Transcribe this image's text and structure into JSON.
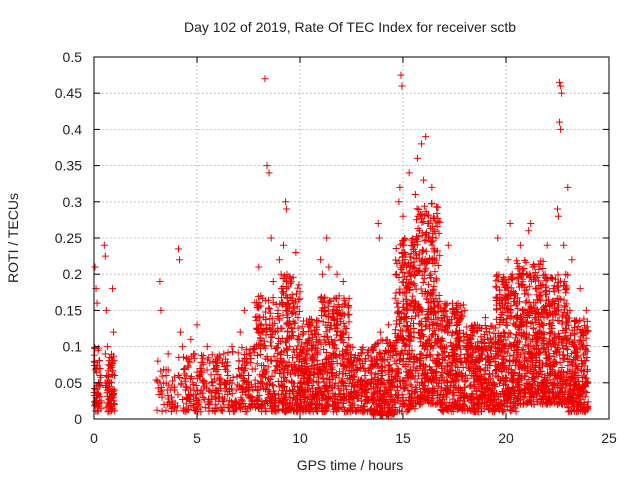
{
  "chart_data": {
    "type": "scatter",
    "title": "Day 102 of 2019, Rate Of TEC Index for receiver sctb",
    "xlabel": "GPS time / hours",
    "ylabel": "ROTI / TECUs",
    "xlim": [
      0,
      25
    ],
    "ylim": [
      0,
      0.5
    ],
    "x_ticks": [
      "0",
      "5",
      "10",
      "15",
      "20",
      "25"
    ],
    "y_ticks": [
      "0",
      "0.05",
      "0.1",
      "0.15",
      "0.2",
      "0.25",
      "0.3",
      "0.35",
      "0.4",
      "0.45",
      "0.5"
    ],
    "grid": true,
    "marker": "+",
    "color": "#ee0000",
    "series": [
      {
        "name": "ROTI",
        "points": [
          [
            0.05,
            0.21
          ],
          [
            0.1,
            0.18
          ],
          [
            0.15,
            0.16
          ],
          [
            0.2,
            0.095
          ],
          [
            0.25,
            0.07
          ],
          [
            0.3,
            0.05
          ],
          [
            0.35,
            0.025
          ],
          [
            0.1,
            0.02
          ],
          [
            0.2,
            0.035
          ],
          [
            0.3,
            0.06
          ],
          [
            0.5,
            0.24
          ],
          [
            0.55,
            0.225
          ],
          [
            0.6,
            0.15
          ],
          [
            0.55,
            0.09
          ],
          [
            0.6,
            0.06
          ],
          [
            0.7,
            0.04
          ],
          [
            0.8,
            0.03
          ],
          [
            0.9,
            0.18
          ],
          [
            0.95,
            0.12
          ],
          [
            0.9,
            0.08
          ],
          [
            0.85,
            0.05
          ],
          [
            0.75,
            0.02
          ],
          [
            1.0,
            0.06
          ],
          [
            1.0,
            0.02
          ],
          [
            0.65,
            0.1
          ],
          [
            0.7,
            0.075
          ],
          [
            3.2,
            0.19
          ],
          [
            3.25,
            0.15
          ],
          [
            3.1,
            0.08
          ],
          [
            3.2,
            0.05
          ],
          [
            3.3,
            0.03
          ],
          [
            3.4,
            0.02
          ],
          [
            3.5,
            0.06
          ],
          [
            3.6,
            0.09
          ],
          [
            3.7,
            0.04
          ],
          [
            3.8,
            0.02
          ],
          [
            4.1,
            0.235
          ],
          [
            4.15,
            0.22
          ],
          [
            4.2,
            0.12
          ],
          [
            4.3,
            0.1
          ],
          [
            4.1,
            0.06
          ],
          [
            4.4,
            0.07
          ],
          [
            4.5,
            0.03
          ],
          [
            4.6,
            0.08
          ],
          [
            4.7,
            0.11
          ],
          [
            4.8,
            0.05
          ],
          [
            4.9,
            0.09
          ],
          [
            5.0,
            0.13
          ],
          [
            5.1,
            0.06
          ],
          [
            5.2,
            0.04
          ],
          [
            5.3,
            0.075
          ],
          [
            5.5,
            0.1
          ],
          [
            5.7,
            0.05
          ],
          [
            5.9,
            0.08
          ],
          [
            6.1,
            0.03
          ],
          [
            6.3,
            0.09
          ],
          [
            6.5,
            0.06
          ],
          [
            6.7,
            0.1
          ],
          [
            6.9,
            0.04
          ],
          [
            7.1,
            0.12
          ],
          [
            7.2,
            0.08
          ],
          [
            7.3,
            0.15
          ],
          [
            7.4,
            0.05
          ],
          [
            7.5,
            0.06
          ],
          [
            7.6,
            0.03
          ],
          [
            7.8,
            0.1
          ],
          [
            8.0,
            0.21
          ],
          [
            8.1,
            0.17
          ],
          [
            8.2,
            0.12
          ],
          [
            8.3,
            0.47
          ],
          [
            8.4,
            0.35
          ],
          [
            8.5,
            0.34
          ],
          [
            8.6,
            0.25
          ],
          [
            8.7,
            0.19
          ],
          [
            8.8,
            0.12
          ],
          [
            8.9,
            0.08
          ],
          [
            9.0,
            0.22
          ],
          [
            9.1,
            0.18
          ],
          [
            9.2,
            0.24
          ],
          [
            9.3,
            0.3
          ],
          [
            9.35,
            0.29
          ],
          [
            9.4,
            0.16
          ],
          [
            9.5,
            0.1
          ],
          [
            9.6,
            0.05
          ],
          [
            9.7,
            0.03
          ],
          [
            9.8,
            0.23
          ],
          [
            9.9,
            0.14
          ],
          [
            10.0,
            0.07
          ],
          [
            10.1,
            0.04
          ],
          [
            10.2,
            0.1
          ],
          [
            10.3,
            0.09
          ],
          [
            10.4,
            0.05
          ],
          [
            10.5,
            0.13
          ],
          [
            10.6,
            0.08
          ],
          [
            10.7,
            0.03
          ],
          [
            10.8,
            0.11
          ],
          [
            11.0,
            0.22
          ],
          [
            11.1,
            0.2
          ],
          [
            11.2,
            0.15
          ],
          [
            11.3,
            0.25
          ],
          [
            11.4,
            0.21
          ],
          [
            11.5,
            0.14
          ],
          [
            11.6,
            0.09
          ],
          [
            11.7,
            0.06
          ],
          [
            11.8,
            0.2
          ],
          [
            11.9,
            0.17
          ],
          [
            12.0,
            0.12
          ],
          [
            12.1,
            0.19
          ],
          [
            12.2,
            0.16
          ],
          [
            12.3,
            0.1
          ],
          [
            12.4,
            0.06
          ],
          [
            12.5,
            0.03
          ],
          [
            12.6,
            0.08
          ],
          [
            12.8,
            0.05
          ],
          [
            13.0,
            0.09
          ],
          [
            13.2,
            0.04
          ],
          [
            13.4,
            0.07
          ],
          [
            13.6,
            0.03
          ],
          [
            13.7,
            0.02
          ],
          [
            13.8,
            0.27
          ],
          [
            13.85,
            0.25
          ],
          [
            13.9,
            0.12
          ],
          [
            14.0,
            0.06
          ],
          [
            14.1,
            0.09
          ],
          [
            14.2,
            0.04
          ],
          [
            14.3,
            0.13
          ],
          [
            14.4,
            0.1
          ],
          [
            14.5,
            0.05
          ],
          [
            14.6,
            0.08
          ],
          [
            14.7,
            0.16
          ],
          [
            14.8,
            0.3
          ],
          [
            14.85,
            0.32
          ],
          [
            14.9,
            0.475
          ],
          [
            14.95,
            0.46
          ],
          [
            15.0,
            0.28
          ],
          [
            15.1,
            0.22
          ],
          [
            15.2,
            0.18
          ],
          [
            15.3,
            0.34
          ],
          [
            15.4,
            0.24
          ],
          [
            15.5,
            0.15
          ],
          [
            15.6,
            0.31
          ],
          [
            15.7,
            0.36
          ],
          [
            15.8,
            0.26
          ],
          [
            15.9,
            0.38
          ],
          [
            16.0,
            0.33
          ],
          [
            16.1,
            0.39
          ],
          [
            16.2,
            0.27
          ],
          [
            16.3,
            0.22
          ],
          [
            16.4,
            0.32
          ],
          [
            16.5,
            0.19
          ],
          [
            16.6,
            0.25
          ],
          [
            16.7,
            0.14
          ],
          [
            16.8,
            0.1
          ],
          [
            16.9,
            0.07
          ],
          [
            17.0,
            0.05
          ],
          [
            17.2,
            0.24
          ],
          [
            17.4,
            0.16
          ],
          [
            17.6,
            0.12
          ],
          [
            17.8,
            0.08
          ],
          [
            18.0,
            0.15
          ],
          [
            18.2,
            0.11
          ],
          [
            18.4,
            0.06
          ],
          [
            18.6,
            0.1
          ],
          [
            18.8,
            0.04
          ],
          [
            19.0,
            0.14
          ],
          [
            19.2,
            0.08
          ],
          [
            19.4,
            0.05
          ],
          [
            19.6,
            0.25
          ],
          [
            19.8,
            0.19
          ],
          [
            20.0,
            0.13
          ],
          [
            20.1,
            0.22
          ],
          [
            20.2,
            0.27
          ],
          [
            20.3,
            0.2
          ],
          [
            20.4,
            0.17
          ],
          [
            20.5,
            0.1
          ],
          [
            20.6,
            0.06
          ],
          [
            20.7,
            0.24
          ],
          [
            20.8,
            0.15
          ],
          [
            20.9,
            0.08
          ],
          [
            21.0,
            0.2
          ],
          [
            21.1,
            0.26
          ],
          [
            21.2,
            0.27
          ],
          [
            21.3,
            0.21
          ],
          [
            21.4,
            0.14
          ],
          [
            21.5,
            0.18
          ],
          [
            21.6,
            0.09
          ],
          [
            21.7,
            0.05
          ],
          [
            21.8,
            0.12
          ],
          [
            21.9,
            0.2
          ],
          [
            22.0,
            0.24
          ],
          [
            22.1,
            0.16
          ],
          [
            22.2,
            0.1
          ],
          [
            22.3,
            0.18
          ],
          [
            22.4,
            0.06
          ],
          [
            22.5,
            0.29
          ],
          [
            22.55,
            0.28
          ],
          [
            22.6,
            0.465
          ],
          [
            22.65,
            0.46
          ],
          [
            22.7,
            0.45
          ],
          [
            22.6,
            0.41
          ],
          [
            22.65,
            0.4
          ],
          [
            22.8,
            0.24
          ],
          [
            22.9,
            0.2
          ],
          [
            23.0,
            0.32
          ],
          [
            23.1,
            0.15
          ],
          [
            23.2,
            0.22
          ],
          [
            23.3,
            0.1
          ],
          [
            23.4,
            0.06
          ],
          [
            23.5,
            0.03
          ],
          [
            23.6,
            0.18
          ],
          [
            23.7,
            0.12
          ],
          [
            23.8,
            0.08
          ],
          [
            23.9,
            0.15
          ],
          [
            23.95,
            0.05
          ],
          [
            23.8,
            0.02
          ],
          [
            23.5,
            0.02
          ]
        ],
        "dense_bands": [
          {
            "x0": 0.0,
            "x1": 0.35,
            "ylo": 0.01,
            "yhi": 0.1,
            "n": 50
          },
          {
            "x0": 0.55,
            "x1": 1.0,
            "ylo": 0.01,
            "yhi": 0.09,
            "n": 70
          },
          {
            "x0": 3.0,
            "x1": 4.0,
            "ylo": 0.01,
            "yhi": 0.07,
            "n": 40
          },
          {
            "x0": 4.0,
            "x1": 6.5,
            "ylo": 0.01,
            "yhi": 0.09,
            "n": 180
          },
          {
            "x0": 6.5,
            "x1": 7.8,
            "ylo": 0.01,
            "yhi": 0.1,
            "n": 110
          },
          {
            "x0": 7.8,
            "x1": 9.0,
            "ylo": 0.01,
            "yhi": 0.17,
            "n": 200
          },
          {
            "x0": 9.0,
            "x1": 10.0,
            "ylo": 0.01,
            "yhi": 0.2,
            "n": 240
          },
          {
            "x0": 10.0,
            "x1": 11.0,
            "ylo": 0.01,
            "yhi": 0.14,
            "n": 220
          },
          {
            "x0": 11.0,
            "x1": 12.4,
            "ylo": 0.01,
            "yhi": 0.17,
            "n": 300
          },
          {
            "x0": 12.4,
            "x1": 13.5,
            "ylo": 0.01,
            "yhi": 0.1,
            "n": 160
          },
          {
            "x0": 13.5,
            "x1": 14.6,
            "ylo": 0.005,
            "yhi": 0.11,
            "n": 200
          },
          {
            "x0": 14.6,
            "x1": 15.6,
            "ylo": 0.01,
            "yhi": 0.25,
            "n": 300
          },
          {
            "x0": 15.6,
            "x1": 16.8,
            "ylo": 0.02,
            "yhi": 0.3,
            "n": 380
          },
          {
            "x0": 16.8,
            "x1": 18.0,
            "ylo": 0.01,
            "yhi": 0.16,
            "n": 280
          },
          {
            "x0": 18.0,
            "x1": 19.5,
            "ylo": 0.01,
            "yhi": 0.13,
            "n": 320
          },
          {
            "x0": 19.5,
            "x1": 20.5,
            "ylo": 0.01,
            "yhi": 0.2,
            "n": 280
          },
          {
            "x0": 20.5,
            "x1": 21.8,
            "ylo": 0.02,
            "yhi": 0.22,
            "n": 360
          },
          {
            "x0": 21.8,
            "x1": 23.0,
            "ylo": 0.02,
            "yhi": 0.2,
            "n": 320
          },
          {
            "x0": 23.0,
            "x1": 24.0,
            "ylo": 0.01,
            "yhi": 0.14,
            "n": 220
          }
        ]
      }
    ]
  }
}
